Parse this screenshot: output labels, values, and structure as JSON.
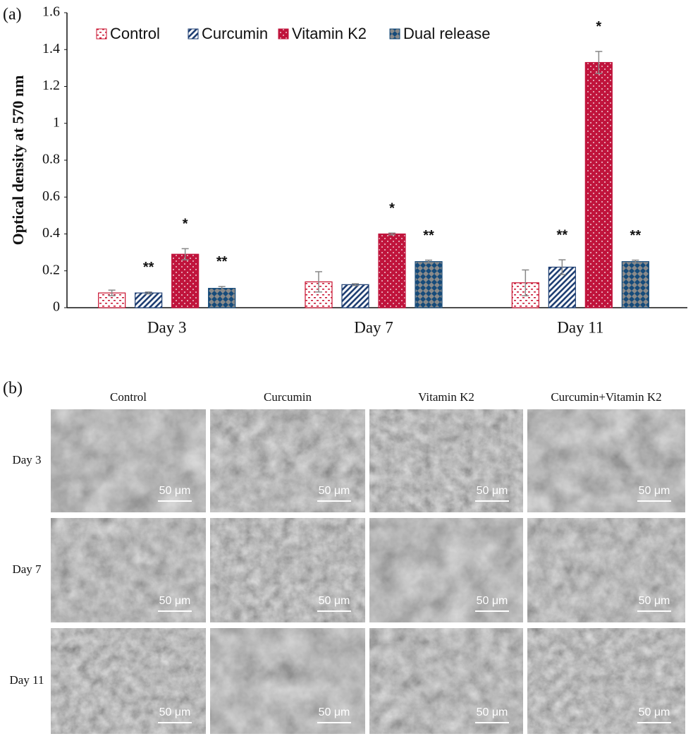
{
  "panel_labels": [
    "(a)",
    "(b)"
  ],
  "chart_data": {
    "type": "bar",
    "ylabel": "Optical density at 570 nm",
    "categories": [
      "Day 3",
      "Day 7",
      "Day 11"
    ],
    "ylim": [
      0,
      1.6
    ],
    "yticks": [
      0,
      0.2,
      0.4,
      0.6,
      0.8,
      1,
      1.2,
      1.4,
      1.6
    ],
    "legend": "top-left",
    "series": [
      {
        "name": "Control",
        "color": "#c8102e",
        "pattern": "dots-on-white",
        "values": [
          0.08,
          0.14,
          0.135
        ],
        "errors": [
          0.015,
          0.055,
          0.07
        ],
        "annotations": [
          null,
          null,
          null
        ]
      },
      {
        "name": "Curcumin",
        "color": "#1f3f73",
        "pattern": "stripes-on-white",
        "values": [
          0.08,
          0.125,
          0.22
        ],
        "errors": [
          0.005,
          0.005,
          0.04
        ],
        "annotations": [
          "**",
          null,
          "**"
        ]
      },
      {
        "name": "Vitamin K2",
        "color": "#c0143c",
        "pattern": "white-dots",
        "values": [
          0.29,
          0.4,
          1.33
        ],
        "errors": [
          0.03,
          0.005,
          0.06
        ],
        "annotations": [
          "*",
          "*",
          "*"
        ]
      },
      {
        "name": "Dual release",
        "color": "#164b7a",
        "pattern": "checker",
        "values": [
          0.105,
          0.25,
          0.25
        ],
        "errors": [
          0.01,
          0.008,
          0.008
        ],
        "annotations": [
          "**",
          "**",
          "**"
        ]
      }
    ]
  },
  "sem_grid": {
    "columns": [
      "Control",
      "Curcumin",
      "Vitamin K2",
      "Curcumin+Vitamin K2"
    ],
    "rows": [
      "Day 3",
      "Day 7",
      "Day 11"
    ],
    "scale_bar": "50 μm"
  }
}
